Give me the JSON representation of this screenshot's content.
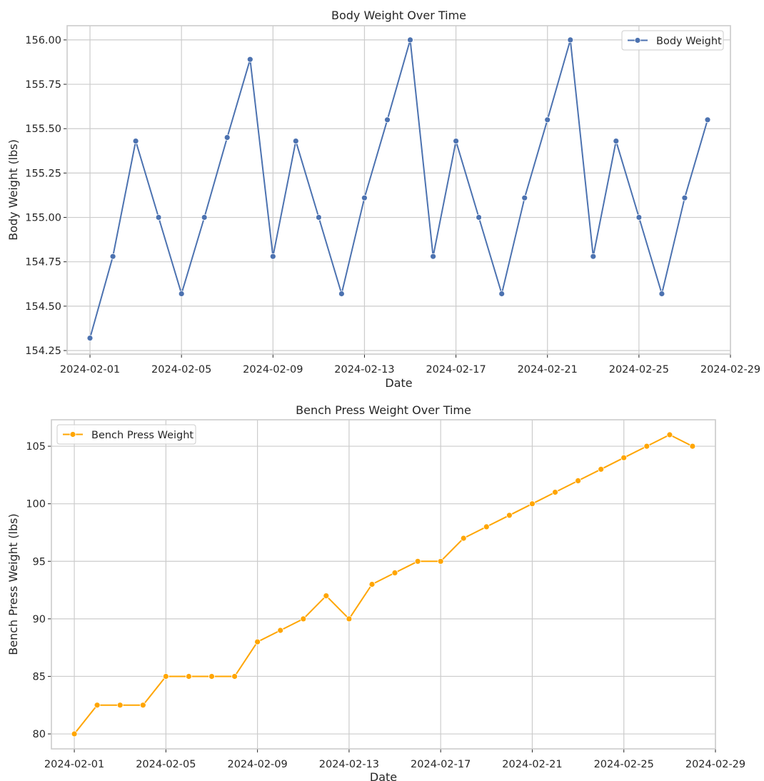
{
  "chart_data": [
    {
      "type": "line",
      "title": "Body Weight Over Time",
      "xlabel": "Date",
      "ylabel": "Body Weight (lbs)",
      "legend": "top-right",
      "grid": true,
      "x_ticks": [
        "2024-02-01",
        "2024-02-05",
        "2024-02-09",
        "2024-02-13",
        "2024-02-17",
        "2024-02-21",
        "2024-02-25",
        "2024-02-29"
      ],
      "y_ticks": [
        "154.25",
        "154.50",
        "154.75",
        "155.00",
        "155.25",
        "155.50",
        "155.75",
        "156.00"
      ],
      "ylim": [
        154.23,
        156.08
      ],
      "xlim": [
        "2024-01-31",
        "2024-02-29"
      ],
      "color": "#4c72b0",
      "series": [
        {
          "name": "Body Weight",
          "x": [
            "2024-02-01",
            "2024-02-02",
            "2024-02-03",
            "2024-02-04",
            "2024-02-05",
            "2024-02-06",
            "2024-02-07",
            "2024-02-08",
            "2024-02-09",
            "2024-02-10",
            "2024-02-11",
            "2024-02-12",
            "2024-02-13",
            "2024-02-14",
            "2024-02-15",
            "2024-02-16",
            "2024-02-17",
            "2024-02-18",
            "2024-02-19",
            "2024-02-20",
            "2024-02-21",
            "2024-02-22",
            "2024-02-23",
            "2024-02-24",
            "2024-02-25",
            "2024-02-26",
            "2024-02-27",
            "2024-02-28"
          ],
          "values": [
            154.32,
            154.78,
            155.43,
            155.0,
            154.57,
            155.0,
            155.45,
            155.89,
            154.78,
            155.43,
            155.0,
            154.57,
            155.11,
            155.55,
            156.0,
            154.78,
            155.43,
            155.0,
            154.57,
            155.11,
            155.55,
            156.0,
            154.78,
            155.43,
            155.0,
            154.57,
            155.11,
            155.55
          ]
        }
      ]
    },
    {
      "type": "line",
      "title": "Bench Press Weight Over Time",
      "xlabel": "Date",
      "ylabel": "Bench Press Weight (lbs)",
      "legend": "top-left",
      "grid": true,
      "x_ticks": [
        "2024-02-01",
        "2024-02-05",
        "2024-02-09",
        "2024-02-13",
        "2024-02-17",
        "2024-02-21",
        "2024-02-25",
        "2024-02-29"
      ],
      "y_ticks": [
        "80",
        "85",
        "90",
        "95",
        "100",
        "105"
      ],
      "ylim": [
        78.7,
        107.3
      ],
      "xlim": [
        "2024-01-31",
        "2024-02-29"
      ],
      "color": "#ffa500",
      "series": [
        {
          "name": "Bench Press Weight",
          "x": [
            "2024-02-01",
            "2024-02-02",
            "2024-02-03",
            "2024-02-04",
            "2024-02-05",
            "2024-02-06",
            "2024-02-07",
            "2024-02-08",
            "2024-02-09",
            "2024-02-10",
            "2024-02-11",
            "2024-02-12",
            "2024-02-13",
            "2024-02-14",
            "2024-02-15",
            "2024-02-16",
            "2024-02-17",
            "2024-02-18",
            "2024-02-19",
            "2024-02-20",
            "2024-02-21",
            "2024-02-22",
            "2024-02-23",
            "2024-02-24",
            "2024-02-25",
            "2024-02-26",
            "2024-02-27",
            "2024-02-28"
          ],
          "values": [
            80,
            82.5,
            82.5,
            82.5,
            85,
            85,
            85,
            85,
            88,
            89,
            90,
            92,
            90,
            93,
            94,
            95,
            95,
            97,
            98,
            99,
            100,
            101,
            102,
            103,
            104,
            105,
            106,
            105
          ]
        }
      ]
    }
  ]
}
